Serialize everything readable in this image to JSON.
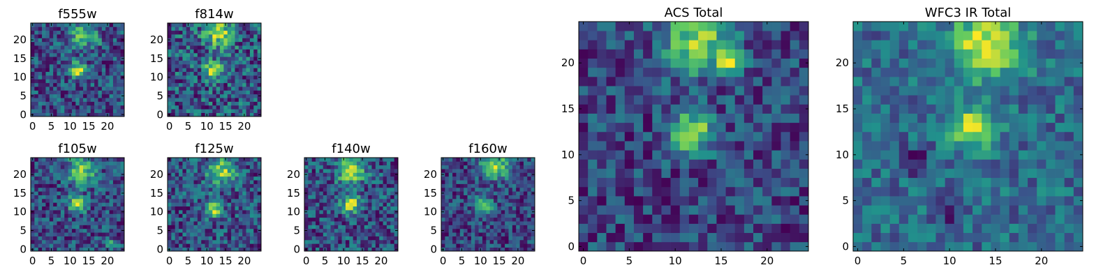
{
  "figure": {
    "colormap": "viridis",
    "colormap_stops": [
      "#440154",
      "#3b528b",
      "#21918c",
      "#5ec962",
      "#fde725"
    ]
  },
  "chart_data": [
    {
      "type": "heatmap",
      "title": "f555w",
      "xlim": [
        -0.5,
        24.5
      ],
      "ylim": [
        -0.5,
        24.5
      ],
      "xticks": [
        0,
        5,
        10,
        15,
        20
      ],
      "yticks": [
        0,
        5,
        10,
        15,
        20
      ],
      "xtick_labels": [
        "0",
        "5",
        "10",
        "15",
        "20"
      ],
      "ytick_labels": [
        "0",
        "5",
        "10",
        "15",
        "20"
      ],
      "grid_size": [
        25,
        25
      ],
      "features": [
        {
          "kind": "source",
          "x": 12,
          "y": 12,
          "peak": 1.0
        },
        {
          "kind": "extended",
          "x": 13,
          "y": 21.5,
          "peak": 0.65
        },
        {
          "kind": "knot",
          "x": 17,
          "y": 20,
          "peak": 0.5
        }
      ],
      "noise": 0.38,
      "base": 0.55,
      "seed": 11
    },
    {
      "type": "heatmap",
      "title": "f814w",
      "xlim": [
        -0.5,
        24.5
      ],
      "ylim": [
        -0.5,
        24.5
      ],
      "xticks": [
        0,
        5,
        10,
        15,
        20
      ],
      "yticks": [
        0,
        5,
        10,
        15,
        20
      ],
      "xtick_labels": [
        "0",
        "5",
        "10",
        "15",
        "20"
      ],
      "ytick_labels": [
        "0",
        "5",
        "10",
        "15",
        "20"
      ],
      "grid_size": [
        25,
        25
      ],
      "features": [
        {
          "kind": "source",
          "x": 12,
          "y": 12,
          "peak": 0.9
        },
        {
          "kind": "extended",
          "x": 13,
          "y": 22,
          "peak": 0.75
        },
        {
          "kind": "knot",
          "x": 16,
          "y": 20,
          "peak": 0.55
        }
      ],
      "noise": 0.36,
      "base": 0.55,
      "seed": 23
    },
    {
      "type": "heatmap",
      "title": "f105w",
      "xlim": [
        -0.5,
        24.5
      ],
      "ylim": [
        -0.5,
        24.5
      ],
      "xticks": [
        0,
        5,
        10,
        15,
        20
      ],
      "yticks": [
        0,
        5,
        10,
        15,
        20
      ],
      "xtick_labels": [
        "0",
        "5",
        "10",
        "15",
        "20"
      ],
      "ytick_labels": [
        "0",
        "5",
        "10",
        "15",
        "20"
      ],
      "grid_size": [
        25,
        25
      ],
      "features": [
        {
          "kind": "source",
          "x": 12,
          "y": 12,
          "peak": 0.8
        },
        {
          "kind": "extended",
          "x": 13,
          "y": 21,
          "peak": 0.75
        },
        {
          "kind": "knot",
          "x": 21,
          "y": 1,
          "peak": 0.6
        }
      ],
      "noise": 0.3,
      "base": 0.68,
      "seed": 37
    },
    {
      "type": "heatmap",
      "title": "f125w",
      "xlim": [
        -0.5,
        24.5
      ],
      "ylim": [
        -0.5,
        24.5
      ],
      "xticks": [
        0,
        5,
        10,
        15,
        20
      ],
      "yticks": [
        0,
        5,
        10,
        15,
        20
      ],
      "xtick_labels": [
        "0",
        "5",
        "10",
        "15",
        "20"
      ],
      "ytick_labels": [
        "0",
        "5",
        "10",
        "15",
        "20"
      ],
      "grid_size": [
        25,
        25
      ],
      "features": [
        {
          "kind": "source",
          "x": 12,
          "y": 11,
          "peak": 0.75
        },
        {
          "kind": "extended",
          "x": 14,
          "y": 21,
          "peak": 0.7
        }
      ],
      "noise": 0.3,
      "base": 0.7,
      "seed": 41
    },
    {
      "type": "heatmap",
      "title": "f140w",
      "xlim": [
        -0.5,
        24.5
      ],
      "ylim": [
        -0.5,
        24.5
      ],
      "xticks": [
        0,
        5,
        10,
        15,
        20
      ],
      "yticks": [
        0,
        5,
        10,
        15,
        20
      ],
      "xtick_labels": [
        "0",
        "5",
        "10",
        "15",
        "20"
      ],
      "ytick_labels": [
        "0",
        "5",
        "10",
        "15",
        "20"
      ],
      "grid_size": [
        25,
        25
      ],
      "features": [
        {
          "kind": "source",
          "x": 12,
          "y": 12,
          "peak": 0.85
        },
        {
          "kind": "extended",
          "x": 12,
          "y": 21,
          "peak": 0.8
        }
      ],
      "noise": 0.32,
      "base": 0.68,
      "seed": 53
    },
    {
      "type": "heatmap",
      "title": "f160w",
      "xlim": [
        -0.5,
        24.5
      ],
      "ylim": [
        -0.5,
        24.5
      ],
      "xticks": [
        0,
        5,
        10,
        15,
        20
      ],
      "yticks": [
        0,
        5,
        10,
        15,
        20
      ],
      "xtick_labels": [
        "0",
        "5",
        "10",
        "15",
        "20"
      ],
      "ytick_labels": [
        "0",
        "5",
        "10",
        "15",
        "20"
      ],
      "grid_size": [
        25,
        25
      ],
      "features": [
        {
          "kind": "source",
          "x": 11,
          "y": 12,
          "peak": 0.8
        },
        {
          "kind": "extended",
          "x": 14,
          "y": 22.5,
          "peak": 1.0
        }
      ],
      "noise": 0.34,
      "base": 0.6,
      "seed": 67
    },
    {
      "type": "heatmap",
      "title": "ACS Total",
      "xlim": [
        -0.5,
        24.5
      ],
      "ylim": [
        -0.5,
        24.5
      ],
      "xticks": [
        0,
        5,
        10,
        15,
        20
      ],
      "yticks": [
        0,
        5,
        10,
        15,
        20
      ],
      "xtick_labels": [
        "0",
        "5",
        "10",
        "15",
        "20"
      ],
      "ytick_labels": [
        "0",
        "5",
        "10",
        "15",
        "20"
      ],
      "grid_size": [
        25,
        25
      ],
      "features": [
        {
          "kind": "source",
          "x": 12,
          "y": 12.5,
          "peak": 1.0
        },
        {
          "kind": "extended",
          "x": 12.5,
          "y": 22.5,
          "peak": 0.85
        },
        {
          "kind": "knot",
          "x": 16,
          "y": 20,
          "peak": 0.8
        }
      ],
      "noise": 0.3,
      "base": 0.52,
      "seed": 79
    },
    {
      "type": "heatmap",
      "title": "WFC3 IR Total",
      "xlim": [
        -0.5,
        24.5
      ],
      "ylim": [
        -0.5,
        24.5
      ],
      "xticks": [
        0,
        5,
        10,
        15,
        20
      ],
      "yticks": [
        0,
        5,
        10,
        15,
        20
      ],
      "xtick_labels": [
        "0",
        "5",
        "10",
        "15",
        "20"
      ],
      "ytick_labels": [
        "0",
        "5",
        "10",
        "15",
        "20"
      ],
      "grid_size": [
        25,
        25
      ],
      "features": [
        {
          "kind": "source",
          "x": 12.5,
          "y": 13,
          "peak": 0.95
        },
        {
          "kind": "extended",
          "x": 14,
          "y": 22,
          "peak": 1.0
        },
        {
          "kind": "hole",
          "x": 6,
          "y": 9.5,
          "peak": -0.5
        },
        {
          "kind": "hole",
          "x": 10,
          "y": 4,
          "peak": -0.45
        }
      ],
      "noise": 0.28,
      "base": 0.55,
      "seed": 97
    }
  ]
}
